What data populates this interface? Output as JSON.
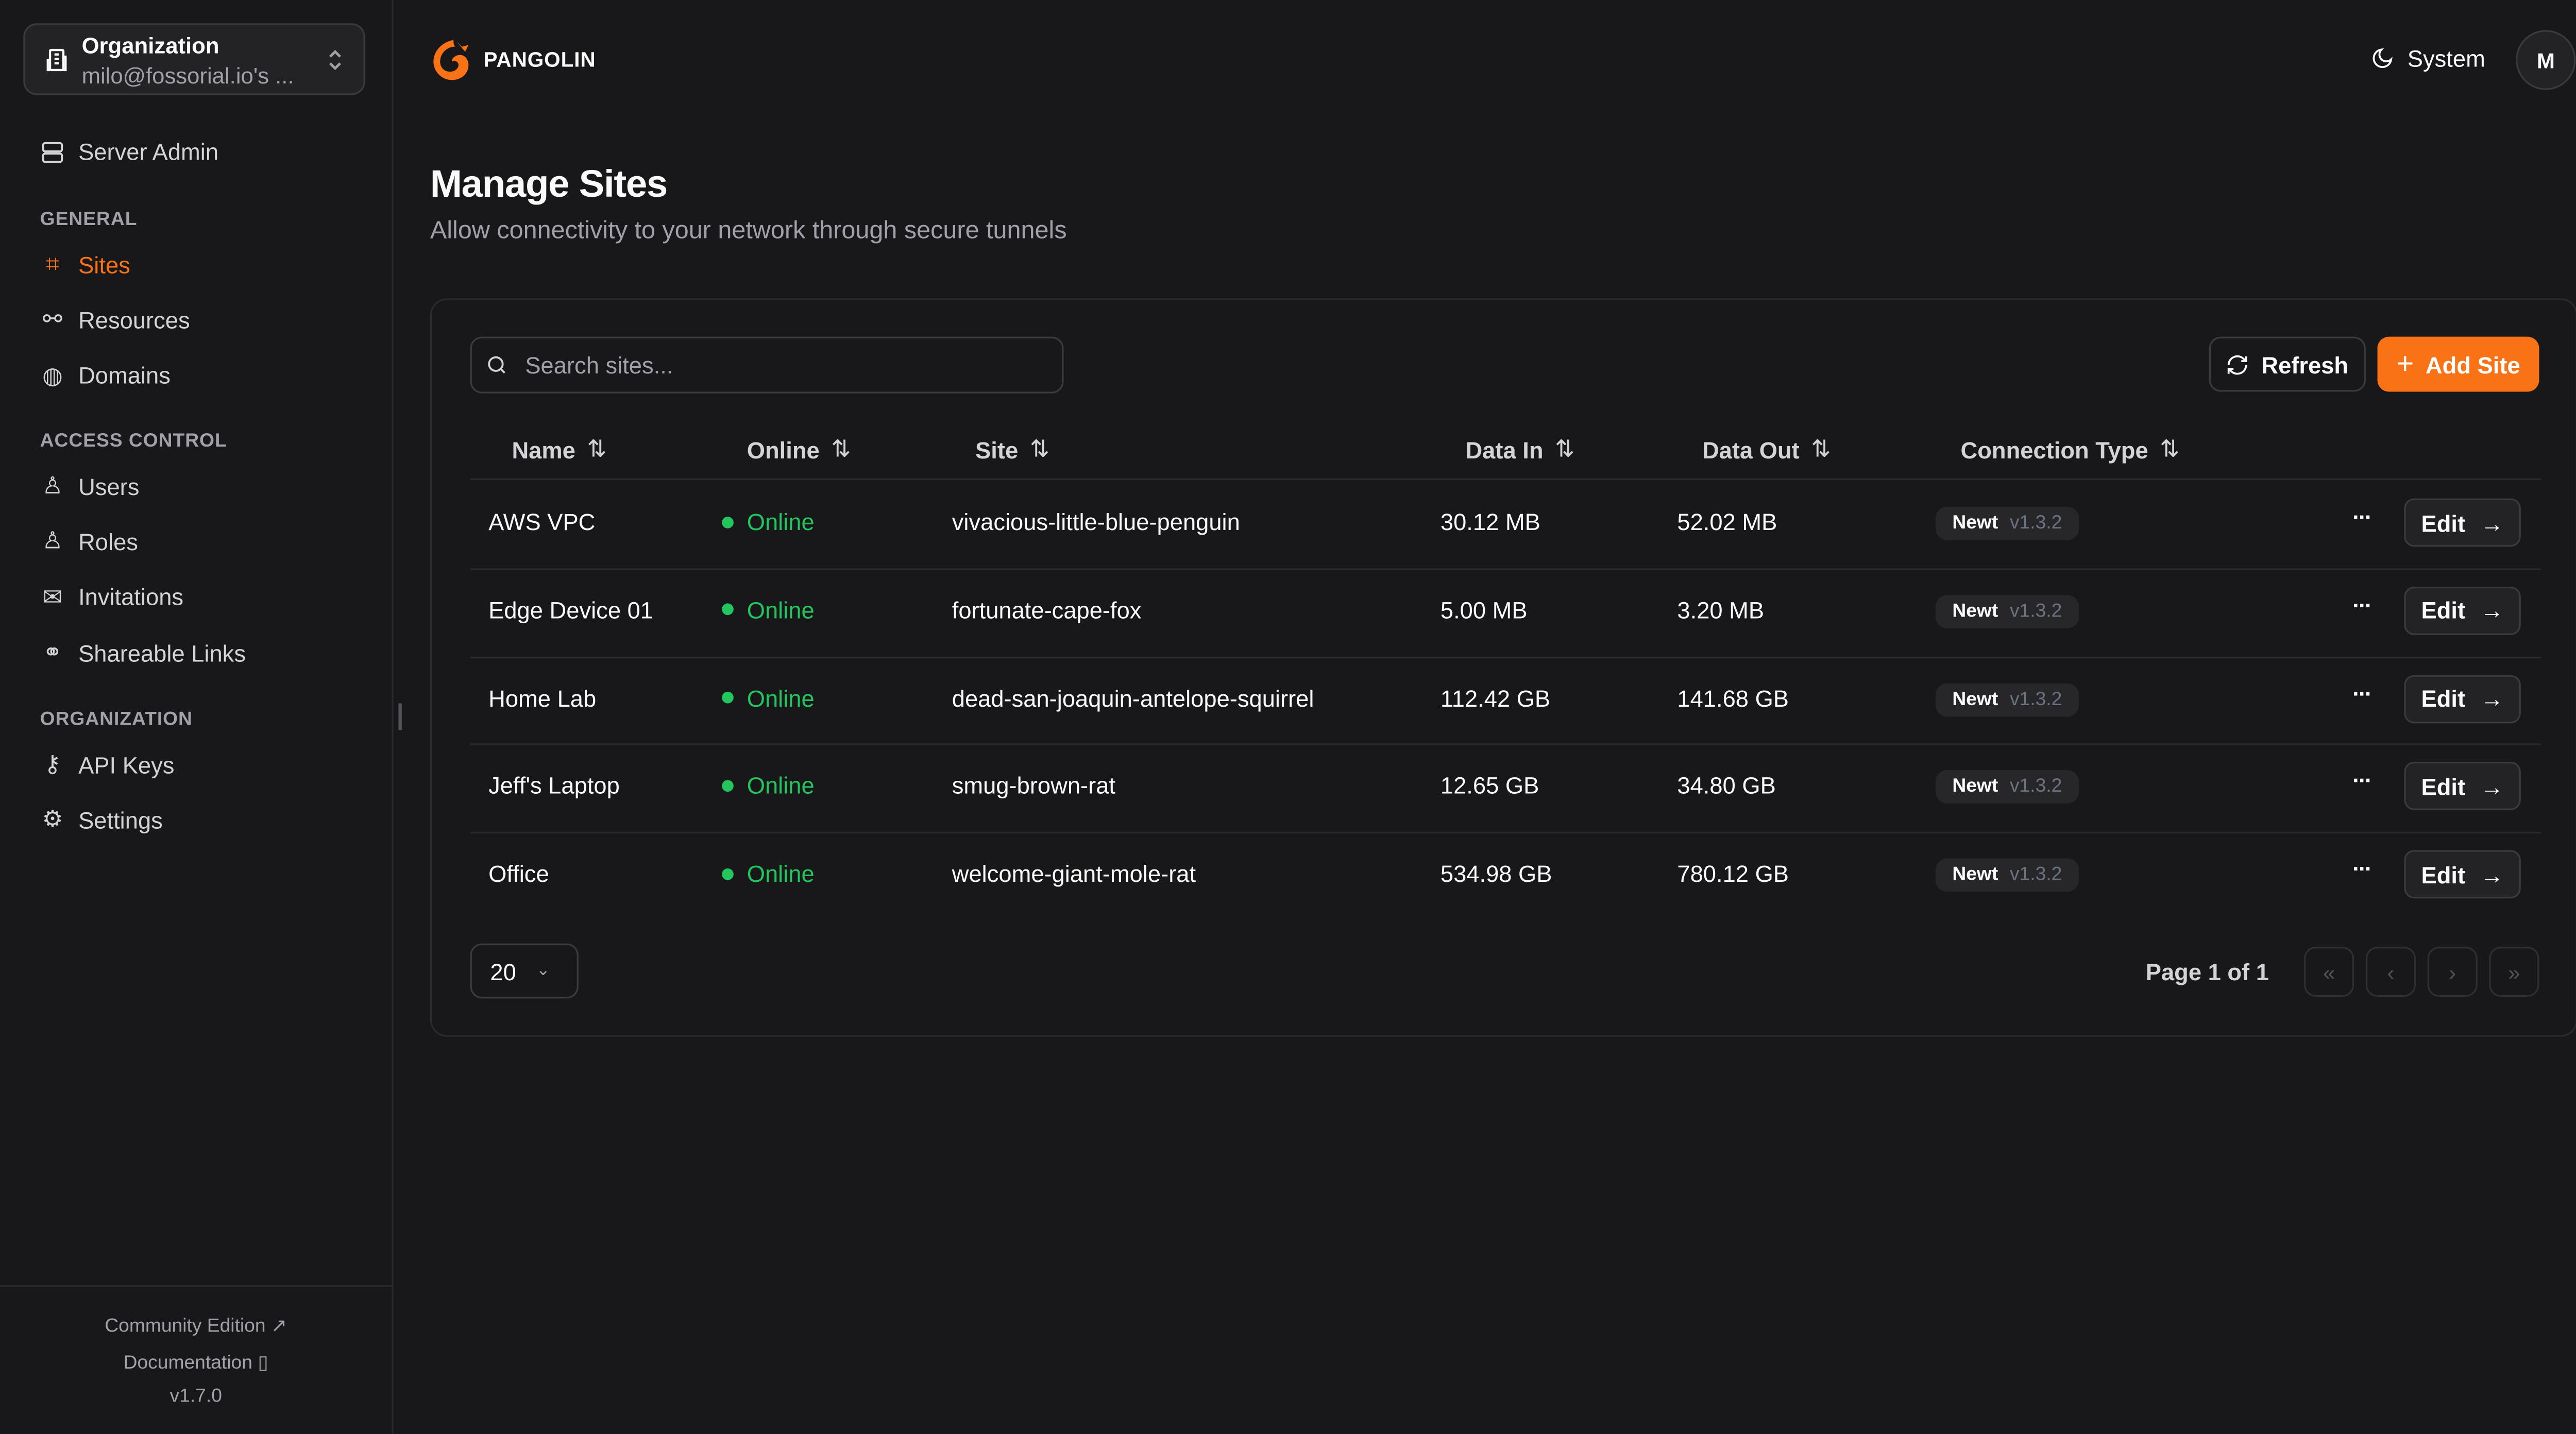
{
  "sidebar": {
    "org": {
      "title": "Organization",
      "subtitle": "milo@fossorial.io's ..."
    },
    "server_admin": "Server Admin",
    "sections": [
      {
        "label": "GENERAL",
        "items": [
          {
            "label": "Sites",
            "icon": "sites-icon",
            "active": true
          },
          {
            "label": "Resources",
            "icon": "resources-icon"
          },
          {
            "label": "Domains",
            "icon": "globe-icon"
          }
        ]
      },
      {
        "label": "ACCESS CONTROL",
        "items": [
          {
            "label": "Users",
            "icon": "user-icon"
          },
          {
            "label": "Roles",
            "icon": "users-icon"
          },
          {
            "label": "Invitations",
            "icon": "mail-icon"
          },
          {
            "label": "Shareable Links",
            "icon": "link-icon"
          }
        ]
      },
      {
        "label": "ORGANIZATION",
        "items": [
          {
            "label": "API Keys",
            "icon": "key-icon"
          },
          {
            "label": "Settings",
            "icon": "gear-icon"
          }
        ]
      }
    ],
    "footer": {
      "community": "Community Edition",
      "docs": "Documentation",
      "version": "v1.7.0"
    }
  },
  "header": {
    "brand": "PANGOLIN",
    "theme": "System",
    "avatar": "M"
  },
  "page": {
    "title": "Manage Sites",
    "subtitle": "Allow connectivity to your network through secure tunnels"
  },
  "toolbar": {
    "search_placeholder": "Search sites...",
    "refresh": "Refresh",
    "add": "Add Site"
  },
  "table": {
    "columns": [
      "Name",
      "Online",
      "Site",
      "Data In",
      "Data Out",
      "Connection Type"
    ],
    "rows": [
      {
        "name": "AWS VPC",
        "online": "Online",
        "site": "vivacious-little-blue-penguin",
        "data_in": "30.12 MB",
        "data_out": "52.02 MB",
        "type": "Newt",
        "version": "v1.3.2"
      },
      {
        "name": "Edge Device 01",
        "online": "Online",
        "site": "fortunate-cape-fox",
        "data_in": "5.00 MB",
        "data_out": "3.20 MB",
        "type": "Newt",
        "version": "v1.3.2"
      },
      {
        "name": "Home Lab",
        "online": "Online",
        "site": "dead-san-joaquin-antelope-squirrel",
        "data_in": "112.42 GB",
        "data_out": "141.68 GB",
        "type": "Newt",
        "version": "v1.3.2"
      },
      {
        "name": "Jeff's Laptop",
        "online": "Online",
        "site": "smug-brown-rat",
        "data_in": "12.65 GB",
        "data_out": "34.80 GB",
        "type": "Newt",
        "version": "v1.3.2"
      },
      {
        "name": "Office",
        "online": "Online",
        "site": "welcome-giant-mole-rat",
        "data_in": "534.98 GB",
        "data_out": "780.12 GB",
        "type": "Newt",
        "version": "v1.3.2"
      }
    ],
    "edit_label": "Edit",
    "more_label": "···"
  },
  "pagination": {
    "page_size": "20",
    "info": "Page 1 of 1"
  },
  "colors": {
    "accent": "#f97316",
    "online": "#22c55e",
    "background": "#18181b"
  }
}
